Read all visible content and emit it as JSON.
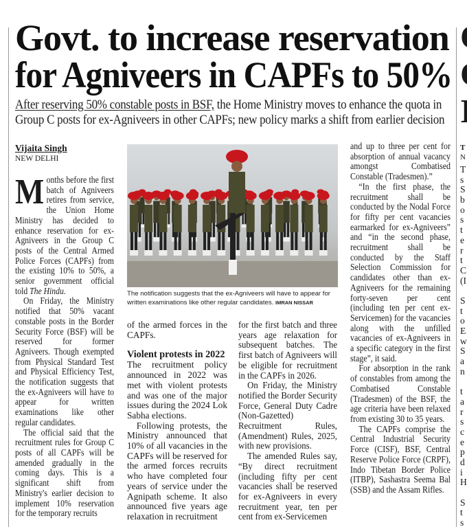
{
  "article": {
    "headline_lines": [
      "Govt. to increase reservation",
      "for Agniveers in CAPFs to 50%"
    ],
    "deck_underlined": "After reserving 50% constable posts in BSF,",
    "deck_rest": " the Home Ministry moves to enhance the quota in Group C posts for ex-Agniveers in other CAPFs; new policy marks a shift from earlier decision",
    "byline": {
      "name": "Vijaita Singh",
      "place": "NEW DELHI"
    },
    "dropcap": "M",
    "col1": {
      "lead_rest": "onths before the first batch of Agniveers retires from service, the Union Home Ministry has decided to enhance reservation for ex-Agniveers in the Group C posts of the Central Armed Police Forces (CAPFs) from the existing 10% to 50%, a senior government official told ",
      "lead_italic": "The Hindu",
      "lead_end": ".",
      "paragraphs": [
        "On Friday, the Ministry notified that 50% vacant constable posts in the Border Security Force (BSF) will be reserved for former Agniveers. Though exempted from Physical Standard Test and Physical Efficiency Test, the notification suggests that the ex-Agniveers will have to appear for written examinations like other regular candidates.",
        "The official said that the recruitment rules for Group C posts of all CAPFs will be amended gradually in the coming days. This is a significant shift from Ministry's earlier decision to implement 10% reservation for the temporary recruits"
      ]
    },
    "col2": {
      "continuation": "of the armed forces in the CAPFs.",
      "subhead": "Violent protests in 2022",
      "paragraphs": [
        "The recruitment policy announced in 2022 was met with violent protests and was one of the major issues during the 2024 Lok Sabha elections.",
        "Following protests, the Ministry announced that 10% of all vacancies in the CAPFs will be reserved for the armed forces recruits who have completed four years of service under the Agnipath scheme. It also announced five years age relaxation in recruitment"
      ]
    },
    "col3": {
      "continuation": "for the first batch and three years age relaxation for subsequent batches. The first batch of Agniveers will be eligible for recruitment in the CAPFs in 2026.",
      "paragraphs": [
        "On Friday, the Ministry notified the Border Security Force, General Duty Cadre (Non-Gazetted) Recruitment Rules, (Amendment) Rules, 2025, with new provisions.",
        "The amended Rules say, “By direct recruitment (including fifty per cent vacancies shall be reserved for ex-Agniveers in every recruitment year, ten per cent from ex-Servicemen"
      ]
    },
    "col4": {
      "continuation": "and up to three per cent for absorption of annual vacancy amongst Combatised Constable (Tradesmen).”",
      "paragraphs": [
        "“In the first phase, the recruitment shall be conducted by the Nodal Force for fifty per cent vacancies earmarked for ex-Agniveers” and “in the second phase, recruitment shall be conducted by the Staff Selection Commission for candidates other than ex-Agniveers for the remaining forty-seven per cent (including ten per cent ex-Servicemen) for the vacancies along with the unfilled vacancies of ex-Agniveers in a specific category in the first stage”, it said.",
        "For absorption in the rank of constables from among the Combatised Constable (Tradesmen) of the BSF, the age criteria have been relaxed from existing 30 to 35 years.",
        "The CAPFs comprise the Central Industrial Security Force (CISF), BSF, Central Reserve Police Force (CRPF), Indo Tibetan Border Police (ITBP), Sashastra Seema Bal (SSB) and the Assam Rifles."
      ]
    },
    "photo": {
      "caption": "The notification suggests that the ex-Agniveers will have to appear for written examinations like other regular candidates. ",
      "credit": "IMRAN NISSAR"
    }
  },
  "adjacent_article_fragment": {
    "headline_letters": [
      "C",
      "C",
      "I"
    ],
    "byline_letters": [
      "T",
      "N"
    ],
    "line_letters": [
      "T",
      "s",
      "S",
      "b",
      "o",
      "s",
      "t",
      "e",
      "r",
      "t",
      "C",
      "(I",
      "",
      "S",
      "t",
      "o",
      "E",
      "w",
      "S",
      "a",
      "n",
      "",
      "t",
      "a",
      "r",
      "s",
      "c",
      "e",
      "p",
      "d",
      "i",
      "H",
      "",
      "S",
      "t",
      "s",
      "c"
    ]
  },
  "colors": {
    "text": "#1a1a1a",
    "turban": "#c8161d",
    "uniform": "#4a4a2e"
  }
}
